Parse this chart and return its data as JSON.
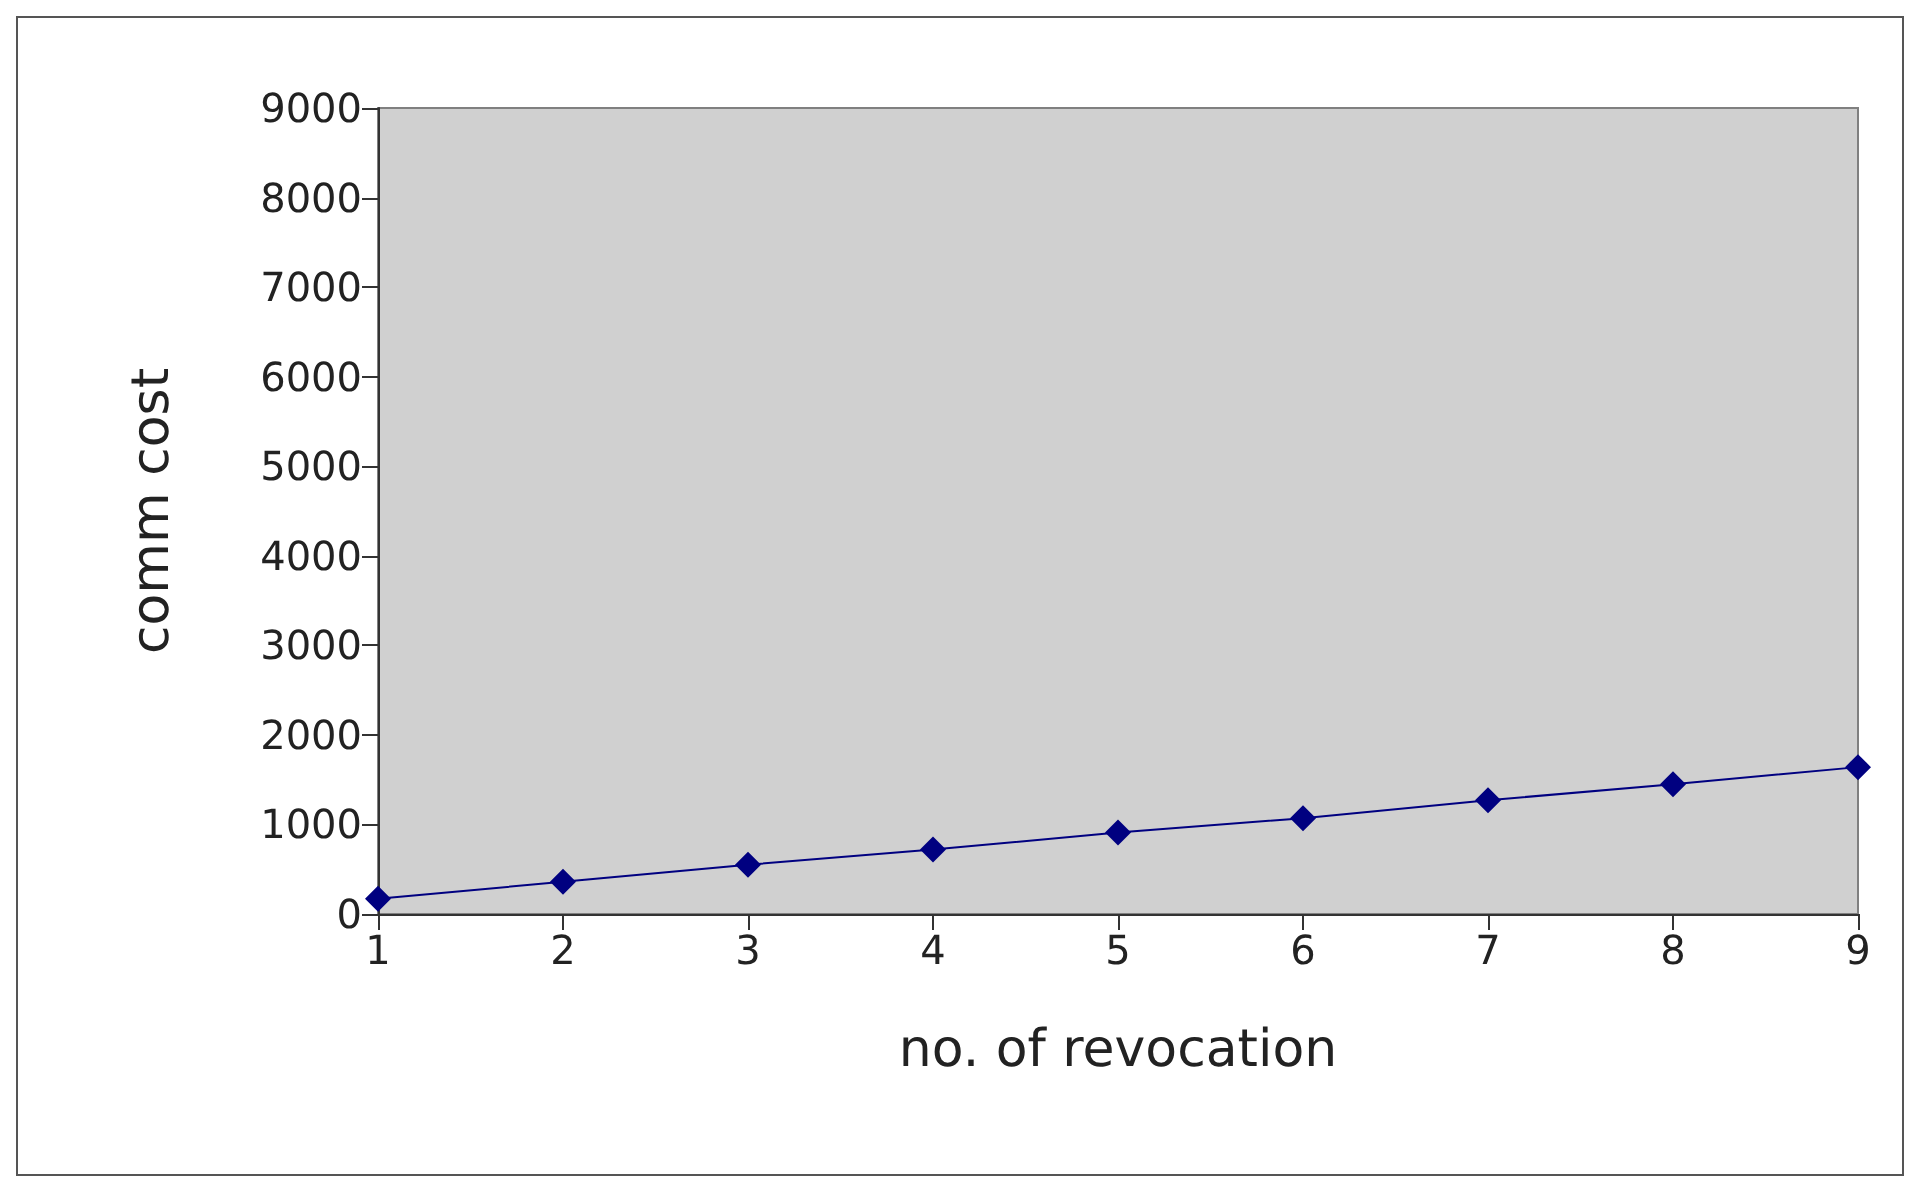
{
  "chart_data": {
    "type": "line",
    "xlabel": "no. of revocation",
    "ylabel": "comm cost",
    "x": [
      1,
      2,
      3,
      4,
      5,
      6,
      7,
      8,
      9
    ],
    "series": [
      {
        "color": "#000080",
        "values": [
          170,
          360,
          550,
          720,
          910,
          1070,
          1270,
          1450,
          1640
        ]
      }
    ],
    "xlim": [
      1,
      9
    ],
    "xticks": [
      1,
      2,
      3,
      4,
      5,
      6,
      7,
      8,
      9
    ],
    "ylim": [
      0,
      9000
    ],
    "yticks": [
      0,
      1000,
      2000,
      3000,
      4000,
      5000,
      6000,
      7000,
      8000,
      9000
    ],
    "grid": false,
    "marker": "diamond",
    "line_style": "solid"
  }
}
